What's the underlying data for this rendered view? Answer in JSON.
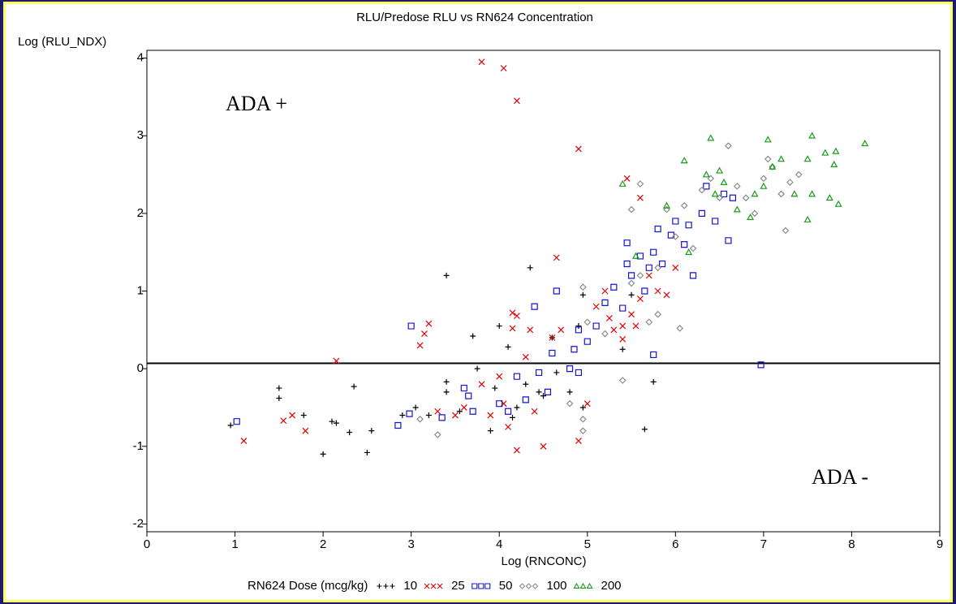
{
  "chart_data": {
    "type": "scatter",
    "title": "RLU/Predose RLU vs RN624 Concentration",
    "y_label": "Log (RLU_NDX)",
    "x_label": "Log (RNCONC)",
    "legend_title": "RN624 Dose (mcg/kg)",
    "annotations": [
      "ADA +",
      "ADA -"
    ],
    "reference_line": 0.07,
    "xlim": [
      0,
      9
    ],
    "ylim": [
      -2.1,
      4.1
    ],
    "xticks": [
      0,
      1,
      2,
      3,
      4,
      5,
      6,
      7,
      8,
      9
    ],
    "yticks": [
      -2,
      -1,
      0,
      1,
      2,
      3,
      4
    ],
    "series": [
      {
        "name": "10",
        "color": "#000000",
        "marker": "plus",
        "x": [
          0.95,
          1.5,
          1.5,
          1.78,
          2.1,
          2.15,
          2.0,
          2.3,
          2.35,
          2.5,
          2.55,
          2.9,
          3.05,
          3.4,
          3.4,
          3.4,
          3.55,
          3.7,
          3.75,
          3.9,
          3.95,
          4.0,
          4.1,
          4.15,
          4.35,
          4.3,
          4.45,
          4.6,
          4.8,
          4.95,
          4.95,
          5.4,
          5.65,
          5.75,
          4.5,
          4.65,
          5.5,
          4.2,
          3.2,
          4.9
        ],
        "values": [
          -0.73,
          -0.25,
          -0.38,
          -0.6,
          -0.68,
          -0.7,
          -1.1,
          -0.82,
          -0.23,
          -1.08,
          -0.8,
          -0.6,
          -0.5,
          1.2,
          -0.17,
          -0.3,
          -0.55,
          0.42,
          0.0,
          -0.8,
          -0.25,
          0.55,
          0.28,
          -0.63,
          1.3,
          -0.2,
          -0.3,
          0.4,
          -0.3,
          0.95,
          -0.5,
          0.25,
          -0.78,
          -0.17,
          -0.35,
          -0.05,
          0.95,
          -0.5,
          -0.6,
          0.55
        ]
      },
      {
        "name": "25",
        "color": "#e00000",
        "marker": "x",
        "x": [
          1.1,
          1.55,
          1.65,
          1.8,
          2.15,
          3.1,
          3.15,
          3.2,
          3.3,
          3.5,
          3.8,
          4.05,
          4.2,
          4.9,
          4.15,
          4.2,
          4.15,
          4.35,
          4.05,
          4.1,
          4.2,
          4.5,
          4.9,
          5.0,
          4.6,
          4.7,
          4.65,
          4.3,
          5.1,
          5.2,
          5.25,
          5.3,
          5.4,
          5.5,
          5.6,
          5.6,
          5.45,
          5.7,
          5.8,
          5.9,
          6.0,
          3.8,
          3.6,
          3.9,
          4.4,
          5.4,
          5.55,
          4.0
        ],
        "values": [
          -0.93,
          -0.67,
          -0.6,
          -0.8,
          0.1,
          0.3,
          0.45,
          0.58,
          -0.55,
          -0.6,
          3.95,
          3.87,
          3.45,
          2.83,
          0.72,
          0.68,
          0.52,
          0.5,
          -0.45,
          -0.75,
          -1.05,
          -1.0,
          -0.93,
          -0.45,
          0.4,
          0.5,
          1.43,
          0.15,
          0.8,
          1.0,
          0.65,
          0.5,
          0.38,
          0.7,
          0.9,
          2.2,
          2.45,
          1.2,
          1.0,
          0.95,
          1.3,
          -0.2,
          -0.5,
          -0.6,
          -0.55,
          0.55,
          0.55,
          -0.1
        ]
      },
      {
        "name": "50",
        "color": "#1414d2",
        "marker": "square",
        "x": [
          1.02,
          2.85,
          2.98,
          3.0,
          3.35,
          3.65,
          3.7,
          3.6,
          4.0,
          4.1,
          4.2,
          4.3,
          4.4,
          4.45,
          4.55,
          4.6,
          4.65,
          4.8,
          4.85,
          4.9,
          5.0,
          5.1,
          5.2,
          5.3,
          5.4,
          5.45,
          5.45,
          5.5,
          5.6,
          5.65,
          5.7,
          5.75,
          5.8,
          5.85,
          5.95,
          6.0,
          6.1,
          6.15,
          6.2,
          6.3,
          6.35,
          6.45,
          6.55,
          6.6,
          6.65,
          6.97,
          5.75,
          4.9
        ],
        "values": [
          -0.68,
          -0.73,
          -0.58,
          0.55,
          -0.63,
          -0.35,
          -0.55,
          -0.25,
          -0.45,
          -0.55,
          -0.1,
          -0.4,
          0.8,
          -0.05,
          -0.3,
          0.2,
          1.0,
          0.0,
          0.25,
          0.5,
          0.35,
          0.55,
          0.85,
          1.05,
          0.78,
          1.35,
          1.62,
          1.2,
          1.45,
          1.0,
          1.3,
          1.5,
          1.8,
          1.35,
          1.72,
          1.9,
          1.6,
          1.85,
          1.2,
          2.0,
          2.35,
          1.9,
          2.25,
          1.65,
          2.2,
          0.05,
          0.18,
          -0.05
        ]
      },
      {
        "name": "100",
        "color": "#8c8c8c",
        "marker": "diamond",
        "x": [
          3.1,
          3.3,
          4.8,
          4.95,
          4.95,
          4.95,
          5.0,
          5.2,
          5.4,
          5.5,
          5.6,
          5.6,
          5.7,
          5.8,
          5.9,
          6.0,
          6.05,
          6.1,
          6.2,
          6.3,
          6.4,
          6.5,
          6.6,
          6.7,
          6.8,
          6.9,
          7.0,
          7.05,
          7.1,
          7.2,
          7.25,
          7.3,
          7.4,
          5.5,
          5.8
        ],
        "values": [
          -0.65,
          -0.85,
          -0.45,
          -0.65,
          -0.8,
          1.05,
          0.6,
          0.45,
          -0.15,
          1.1,
          2.38,
          1.2,
          0.6,
          1.3,
          2.05,
          1.7,
          0.52,
          2.1,
          1.55,
          2.3,
          2.45,
          2.2,
          2.87,
          2.35,
          2.2,
          2.0,
          2.45,
          2.7,
          2.6,
          2.25,
          1.78,
          2.4,
          2.5,
          2.05,
          0.7
        ]
      },
      {
        "name": "200",
        "color": "#1a9a1a",
        "marker": "triangle",
        "x": [
          5.4,
          5.55,
          5.9,
          6.1,
          6.15,
          6.35,
          6.4,
          6.45,
          6.5,
          6.55,
          6.7,
          6.85,
          6.9,
          7.05,
          7.1,
          7.2,
          7.35,
          7.5,
          7.55,
          7.55,
          7.5,
          7.7,
          7.75,
          7.8,
          7.82,
          7.85,
          8.15,
          7.0
        ],
        "values": [
          2.38,
          1.45,
          2.1,
          2.68,
          1.5,
          2.5,
          2.97,
          2.25,
          2.55,
          2.4,
          2.05,
          1.95,
          2.25,
          2.95,
          2.6,
          2.7,
          2.25,
          2.7,
          3.0,
          2.25,
          1.92,
          2.78,
          2.2,
          2.63,
          2.8,
          2.12,
          2.9,
          2.35
        ]
      }
    ]
  }
}
